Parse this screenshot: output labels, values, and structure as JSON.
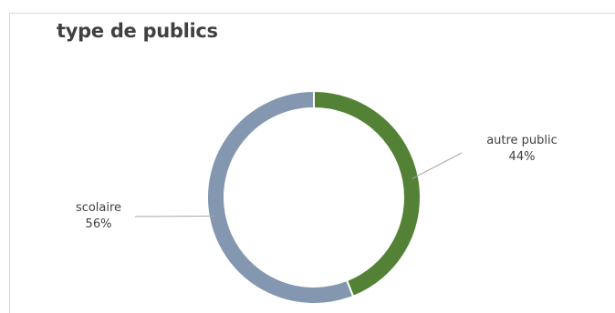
{
  "chart_data": {
    "type": "pie",
    "variant": "donut",
    "title": "type de publics",
    "slices": [
      {
        "label": "autre public",
        "value": 44,
        "value_label": "44%",
        "color": "#538135"
      },
      {
        "label": "scolaire",
        "value": 56,
        "value_label": "56%",
        "color": "#8497b0"
      }
    ]
  }
}
